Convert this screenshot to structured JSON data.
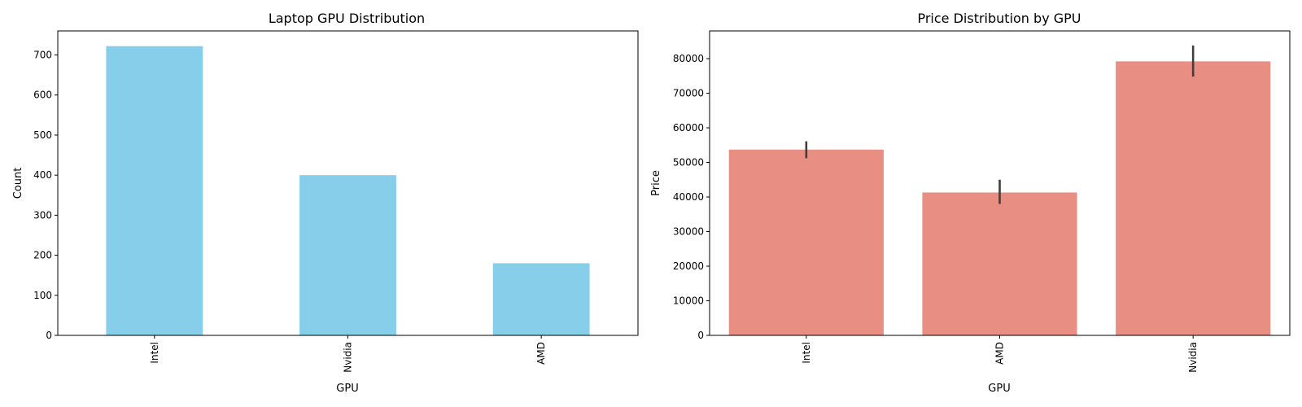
{
  "chart_data": [
    {
      "type": "bar",
      "title": "Laptop GPU Distribution",
      "xlabel": "GPU",
      "ylabel": "Count",
      "categories": [
        "Intel",
        "Nvidia",
        "AMD"
      ],
      "values": [
        722,
        400,
        180
      ],
      "ylim": [
        0,
        760
      ],
      "yticks": [
        "0",
        "100",
        "200",
        "300",
        "400",
        "500",
        "600",
        "700"
      ],
      "color": "#87ceeb",
      "grid": false
    },
    {
      "type": "bar",
      "title": "Price Distribution by GPU",
      "xlabel": "GPU",
      "ylabel": "Price",
      "categories": [
        "Intel",
        "AMD",
        "Nvidia"
      ],
      "values": [
        53700,
        41300,
        79200
      ],
      "error_low": [
        51200,
        38000,
        74800
      ],
      "error_high": [
        56100,
        45000,
        83800
      ],
      "ylim": [
        0,
        88000
      ],
      "yticks": [
        "0",
        "10000",
        "20000",
        "30000",
        "40000",
        "50000",
        "60000",
        "70000",
        "80000"
      ],
      "color": "#e88e83",
      "error_color": "#3f3f3f",
      "grid": false
    }
  ]
}
